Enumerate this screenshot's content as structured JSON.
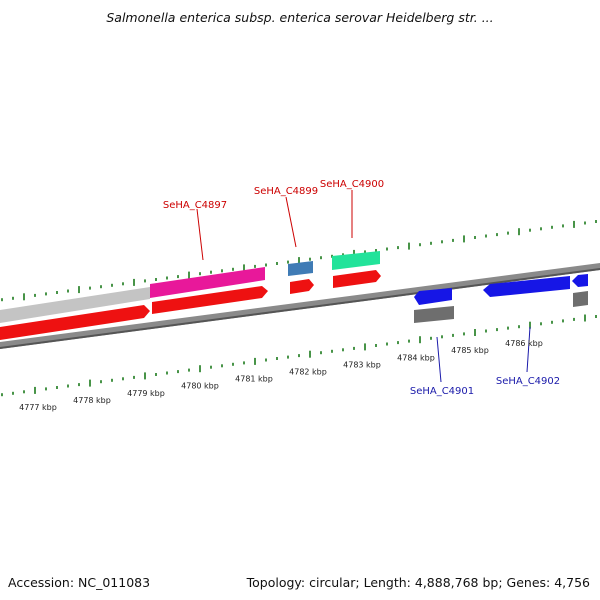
{
  "title": "Salmonella enterica subsp. enterica serovar Heidelberg str. ...",
  "footer": {
    "accession": "Accession: NC_011083",
    "stats": "Topology: circular; Length: 4,888,768 bp; Genes: 4,756"
  },
  "colors": {
    "tick": "#1a7a1a",
    "backbone": "#8a8a8a",
    "forward_label": "#cc0000",
    "reverse_label": "#1a1aaa",
    "cds_red": "#ee1111",
    "cds_magenta": "#e8189a",
    "cds_grey_light": "#c4c4c4",
    "cds_steel": "#3f7bb5",
    "cds_green": "#22e39a",
    "cds_blue": "#1616e6",
    "cds_grey_dark": "#6e6e6e"
  },
  "tick_labels": [
    "4777 kbp",
    "4778 kbp",
    "4779 kbp",
    "4780 kbp",
    "4781 kbp",
    "4782 kbp",
    "4783 kbp",
    "4784 kbp",
    "4785 kbp",
    "4786 kbp"
  ],
  "gene_labels": [
    {
      "text": "SeHA_C4897",
      "strand": "forward"
    },
    {
      "text": "SeHA_C4899",
      "strand": "forward"
    },
    {
      "text": "SeHA_C4900",
      "strand": "forward"
    },
    {
      "text": "SeHA_C4901",
      "strand": "reverse"
    },
    {
      "text": "SeHA_C4902",
      "strand": "reverse"
    }
  ]
}
